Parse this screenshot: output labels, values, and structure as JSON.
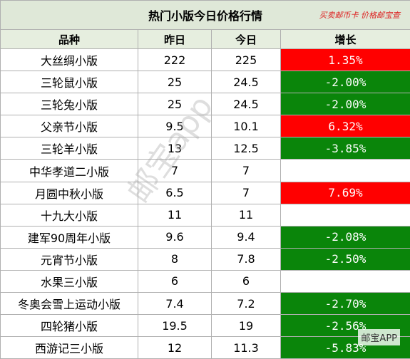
{
  "header": {
    "title": "热门小版今日价格行情",
    "slogan": "买卖邮币卡 价格邮宝查"
  },
  "table": {
    "columns": [
      "品种",
      "昨日",
      "今日",
      "增长"
    ],
    "rows": [
      [
        "大丝绸小版",
        "222",
        "225",
        "1.35%"
      ],
      [
        "三轮鼠小版",
        "25",
        "24.5",
        "-2.00%"
      ],
      [
        "三轮兔小版",
        "25",
        "24.5",
        "-2.00%"
      ],
      [
        "父亲节小版",
        "9.5",
        "10.1",
        "6.32%"
      ],
      [
        "三轮羊小版",
        "13",
        "12.5",
        "-3.85%"
      ],
      [
        "中华孝道二小版",
        "7",
        "7",
        null
      ],
      [
        "月圆中秋小版",
        "6.5",
        "7",
        "7.69%"
      ],
      [
        "十九大小版",
        "11",
        "11",
        null
      ],
      [
        "建军90周年小版",
        "9.6",
        "9.4",
        "-2.08%"
      ],
      [
        "元宵节小版",
        "8",
        "7.8",
        "-2.50%"
      ],
      [
        "水果三小版",
        "6",
        "6",
        null
      ],
      [
        "冬奥会雪上运动小版",
        "7.4",
        "7.2",
        "-2.70%"
      ],
      [
        "四轮猪小版",
        "19.5",
        "19",
        "-2.56%"
      ],
      [
        "西游记三小版",
        "12",
        "11.3",
        "-5.83%"
      ]
    ]
  },
  "watermark": "邮宝app",
  "logo": "邮宝APP"
}
